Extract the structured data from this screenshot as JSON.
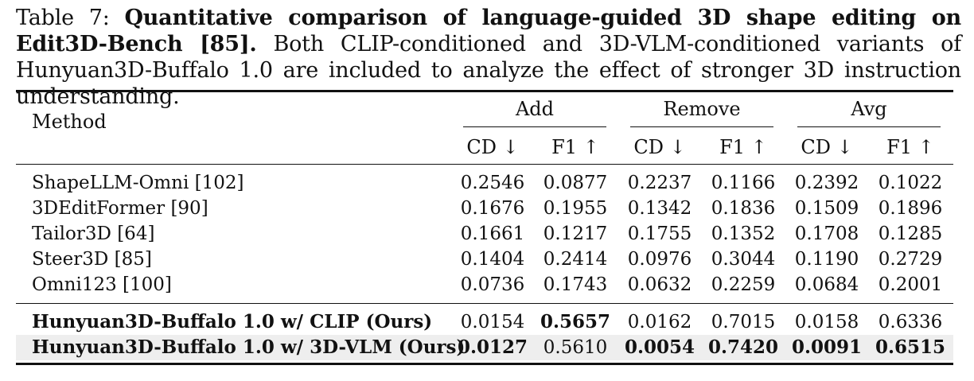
{
  "caption": {
    "label": "Table 7:",
    "bold": "Quantitative comparison of language-guided 3D shape editing on Edit3D-Bench [85].",
    "rest": "Both CLIP-conditioned and 3D-VLM-conditioned variants of Hunyuan3D-Buffalo 1.0 are included to analyze the effect of stronger 3D instruction understanding."
  },
  "header": {
    "method": "Method",
    "groups": [
      "Add",
      "Remove",
      "Avg"
    ],
    "subs": [
      "CD ↓",
      "F1 ↑",
      "CD ↓",
      "F1 ↑",
      "CD ↓",
      "F1 ↑"
    ]
  },
  "rows": [
    {
      "method": "ShapeLLM-Omni [102]",
      "values": [
        "0.2546",
        "0.0877",
        "0.2237",
        "0.1166",
        "0.2392",
        "0.1022"
      ]
    },
    {
      "method": "3DEditFormer [90]",
      "values": [
        "0.1676",
        "0.1955",
        "0.1342",
        "0.1836",
        "0.1509",
        "0.1896"
      ]
    },
    {
      "method": "Tailor3D [64]",
      "values": [
        "0.1661",
        "0.1217",
        "0.1755",
        "0.1352",
        "0.1708",
        "0.1285"
      ]
    },
    {
      "method": "Steer3D [85]",
      "values": [
        "0.1404",
        "0.2414",
        "0.0976",
        "0.3044",
        "0.1190",
        "0.2729"
      ]
    },
    {
      "method": "Omni123 [100]",
      "values": [
        "0.0736",
        "0.1743",
        "0.0632",
        "0.2259",
        "0.0684",
        "0.2001"
      ]
    }
  ],
  "ours": [
    {
      "method": "Hunyuan3D-Buffalo 1.0 w/ CLIP (Ours)",
      "values": [
        "0.0154",
        "0.5657",
        "0.0162",
        "0.7015",
        "0.0158",
        "0.6336"
      ]
    },
    {
      "method": "Hunyuan3D-Buffalo 1.0 w/ 3D-VLM (Ours)",
      "values": [
        "0.0127",
        "0.5610",
        "0.0054",
        "0.7420",
        "0.0091",
        "0.6515"
      ]
    }
  ]
}
